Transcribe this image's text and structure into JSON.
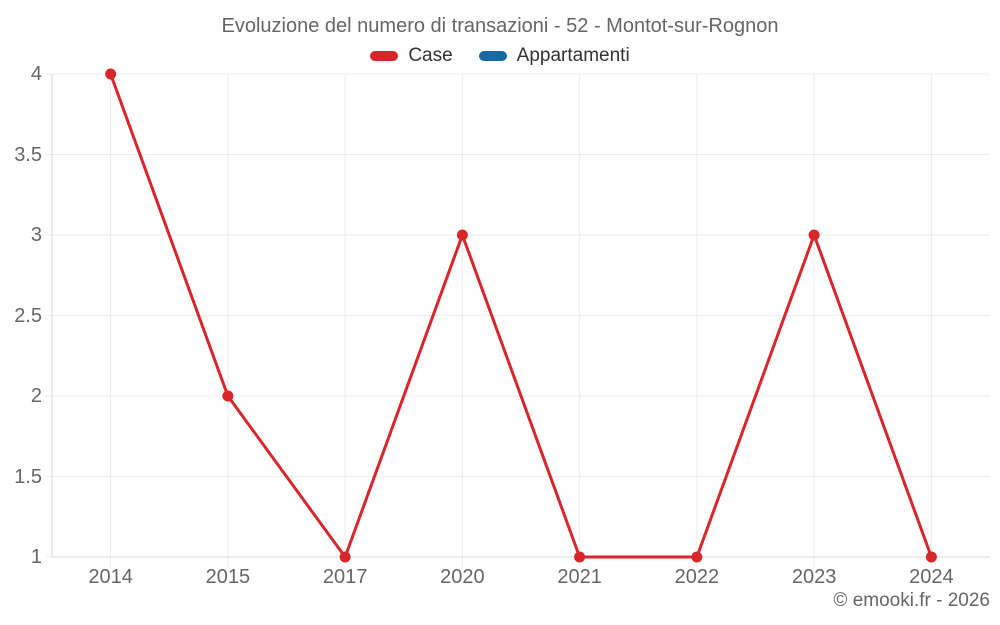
{
  "title": "Evoluzione del numero di transazioni - 52 - Montot-sur-Rognon",
  "credits": "© emooki.fr - 2026",
  "colors": {
    "case_red": "#d8262b",
    "appartamenti_blue": "#1769a0",
    "grid_line": "#ececec",
    "axis_line": "#d9d9d9",
    "title_text": "#666666",
    "axis_label_text": "#666666",
    "legend_text": "#333333"
  },
  "legend": {
    "items": [
      {
        "label": "Case",
        "color": "#d8262b"
      },
      {
        "label": "Appartamenti",
        "color": "#1769a0"
      }
    ]
  },
  "chart_data": {
    "type": "line",
    "title": "Evoluzione del numero di transazioni - 52 - Montot-sur-Rognon",
    "categories": [
      "2014",
      "2015",
      "2017",
      "2020",
      "2021",
      "2022",
      "2023",
      "2024"
    ],
    "series": [
      {
        "name": "Case",
        "color": "#d8262b",
        "values": [
          4,
          2,
          1,
          3,
          1,
          1,
          3,
          1
        ],
        "marker": "circle"
      },
      {
        "name": "Appartamenti",
        "color": "#1769a0",
        "values": [],
        "marker": "circle"
      }
    ],
    "xlabel": "",
    "ylabel": "",
    "ylim": [
      1,
      4
    ],
    "y_ticks": [
      1,
      1.5,
      2,
      2.5,
      3,
      3.5,
      4
    ],
    "grid": true,
    "legend_position": "top"
  }
}
